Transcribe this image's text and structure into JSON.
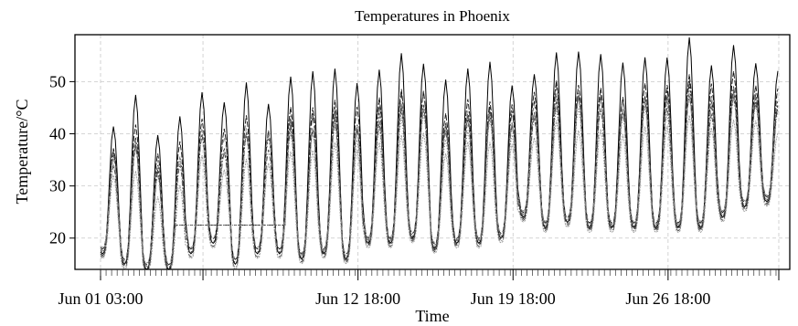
{
  "chart_data": {
    "type": "line",
    "title": "Temperatures in Phoenix",
    "xlabel": "Time",
    "ylabel": "Temperature/°C",
    "x_start": "Jun 01 03:00",
    "x_end": "Jul 01 18:00",
    "sampling": "hourly",
    "ylim": [
      14,
      59
    ],
    "yticks": [
      20,
      30,
      40,
      50
    ],
    "xticks": [
      "Jun 01 03:00",
      "Jun 12 18:00",
      "Jun 19 18:00",
      "Jun 26 18:00"
    ],
    "xtick_extra_unlabeled": [
      "Jun 05 18:00",
      "Jul 01 18:00"
    ],
    "grid": true,
    "legend": "none",
    "color": "#000000",
    "series_style": "many overlapping dashed and dotted series, one solid series with the highest daily maxima",
    "num_series": 9,
    "daily_max_top_series": [
      42,
      46.5,
      40,
      43,
      48.5,
      45,
      50,
      46,
      51,
      51,
      52,
      50,
      52,
      55,
      54.5,
      49.5,
      52,
      53,
      50,
      52,
      56,
      55,
      55,
      53,
      55,
      55,
      58,
      54,
      56.5,
      53.5,
      52
    ],
    "daily_min_approx": [
      17,
      15,
      14,
      14,
      17,
      19,
      15,
      17,
      17,
      16,
      17,
      16,
      19,
      19,
      20,
      18,
      19,
      19,
      20,
      24,
      22,
      23,
      22,
      22,
      22,
      22,
      22,
      22,
      24,
      26,
      27
    ],
    "gap_interval": {
      "start": "Jun 04 12:00",
      "end": "Jun 09 12:00",
      "level": 22.5
    }
  }
}
